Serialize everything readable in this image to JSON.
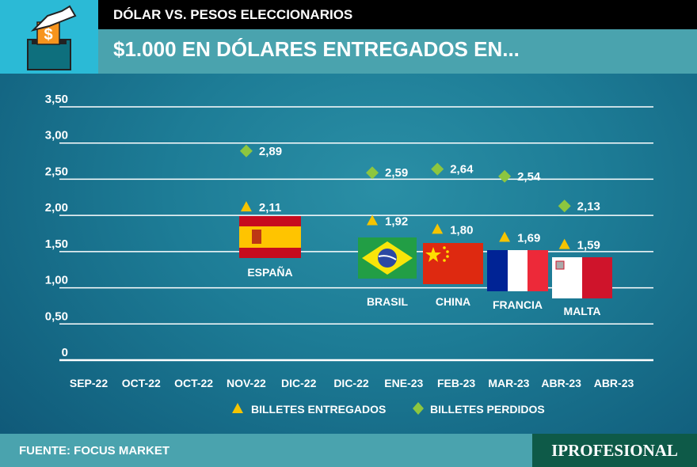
{
  "header": {
    "kicker": "DÓLAR VS. PESOS ELECCIONARIOS",
    "title": "$1.000 EN DÓLARES ENTREGADOS EN..."
  },
  "footer": {
    "source": "FUENTE: FOCUS MARKET",
    "logo": "IPROFESIONAL"
  },
  "colors": {
    "triangle": "#f5c400",
    "diamond": "#8dc63f",
    "grid": "#ffffff"
  },
  "chart_data": {
    "type": "scatter",
    "title": "$1.000 EN DÓLARES ENTREGADOS EN...",
    "xlabel": "",
    "ylabel": "",
    "ylim": [
      0,
      3.5
    ],
    "yticks": [
      "0",
      "0,50",
      "1,00",
      "1,50",
      "2,00",
      "2,50",
      "3,00",
      "3,50"
    ],
    "categories": [
      "SEP-22",
      "OCT-22",
      "OCT-22",
      "NOV-22",
      "DIC-22",
      "DIC-22",
      "ENE-23",
      "FEB-23",
      "MAR-23",
      "ABR-23",
      "ABR-23"
    ],
    "legend": {
      "position": "bottom",
      "entries": [
        "BILLETES ENTREGADOS",
        "BILLETES PERDIDOS"
      ]
    },
    "countries": [
      {
        "name": "ESPAÑA",
        "entregados": 2.11,
        "perdidos": 2.89,
        "entregados_label": "2,11",
        "perdidos_label": "2,89",
        "xpos": 3.0
      },
      {
        "name": "BRASIL",
        "entregados": 1.92,
        "perdidos": 2.59,
        "entregados_label": "1,92",
        "perdidos_label": "2,59",
        "xpos": 5.4
      },
      {
        "name": "CHINA",
        "entregados": 1.8,
        "perdidos": 2.64,
        "entregados_label": "1,80",
        "perdidos_label": "2,64",
        "xpos": 6.64
      },
      {
        "name": "FRANCIA",
        "entregados": 1.69,
        "perdidos": 2.54,
        "entregados_label": "1,69",
        "perdidos_label": "2,54",
        "xpos": 7.92
      },
      {
        "name": "MALTA",
        "entregados": 1.59,
        "perdidos": 2.13,
        "entregados_label": "1,59",
        "perdidos_label": "2,13",
        "xpos": 9.06
      }
    ]
  }
}
